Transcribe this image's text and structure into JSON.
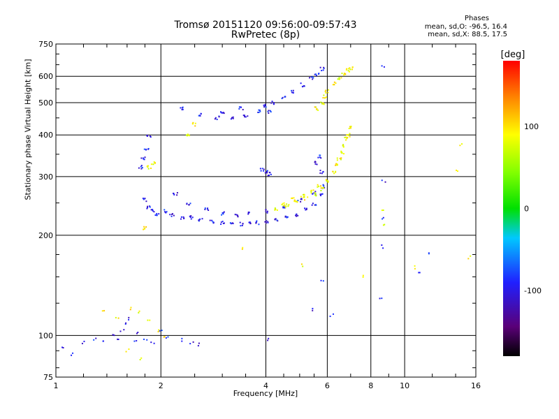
{
  "chart_data": {
    "type": "scatter",
    "title": "Tromsø 20151120 09:56:00-09:57:43",
    "subtitle": "RwPretec (8p)",
    "xlabel": "Frequency [MHz]",
    "ylabel": "Stationary phase Virtual Height [km]",
    "x_scale": "log",
    "y_scale": "log",
    "xlim": [
      1,
      16
    ],
    "ylim": [
      75,
      750
    ],
    "x_ticks": [
      1,
      2,
      4,
      6,
      8,
      10,
      16
    ],
    "y_ticks": [
      75,
      100,
      200,
      300,
      400,
      500,
      600,
      750
    ],
    "grid": true,
    "phases_label": {
      "title": "Phases",
      "o_line": "mean, sd,O: -96.5, 16.4",
      "x_line": "mean, sd,X:  88.5, 17.5"
    },
    "colorbar": {
      "label": "[deg]",
      "range": [
        -180,
        180
      ],
      "ticks": [
        100,
        0,
        -100
      ]
    },
    "series": [
      {
        "name": "O",
        "phase_mean": -96.5,
        "points": [
          [
            1.05,
            92
          ],
          [
            1.12,
            88
          ],
          [
            1.2,
            95
          ],
          [
            1.3,
            98
          ],
          [
            1.38,
            96
          ],
          [
            1.45,
            100
          ],
          [
            1.5,
            97
          ],
          [
            1.55,
            104
          ],
          [
            1.58,
            108
          ],
          [
            1.62,
            112
          ],
          [
            1.68,
            96
          ],
          [
            1.72,
            102
          ],
          [
            1.8,
            98
          ],
          [
            1.9,
            95
          ],
          [
            2.0,
            103
          ],
          [
            2.1,
            98
          ],
          [
            2.3,
            97
          ],
          [
            2.45,
            95
          ],
          [
            2.55,
            94
          ],
          [
            1.8,
            255
          ],
          [
            1.85,
            242
          ],
          [
            1.9,
            236
          ],
          [
            1.95,
            232
          ],
          [
            2.05,
            236
          ],
          [
            2.15,
            230
          ],
          [
            2.3,
            225
          ],
          [
            2.45,
            226
          ],
          [
            2.6,
            222
          ],
          [
            2.8,
            220
          ],
          [
            3.0,
            218
          ],
          [
            3.2,
            217
          ],
          [
            3.4,
            216
          ],
          [
            3.6,
            217
          ],
          [
            3.8,
            218
          ],
          [
            4.0,
            220
          ],
          [
            4.3,
            222
          ],
          [
            4.6,
            226
          ],
          [
            4.9,
            230
          ],
          [
            5.2,
            238
          ],
          [
            5.5,
            248
          ],
          [
            5.8,
            265
          ],
          [
            5.9,
            280
          ],
          [
            2.2,
            265
          ],
          [
            2.4,
            248
          ],
          [
            2.7,
            240
          ],
          [
            3.0,
            232
          ],
          [
            3.3,
            230
          ],
          [
            3.6,
            232
          ],
          [
            4.0,
            236
          ],
          [
            4.5,
            244
          ],
          [
            5.0,
            255
          ],
          [
            5.5,
            268
          ],
          [
            1.85,
            395
          ],
          [
            1.82,
            360
          ],
          [
            1.78,
            340
          ],
          [
            1.75,
            320
          ],
          [
            2.3,
            480
          ],
          [
            2.6,
            460
          ],
          [
            2.9,
            450
          ],
          [
            3.2,
            448
          ],
          [
            3.5,
            455
          ],
          [
            3.8,
            470
          ],
          [
            4.0,
            490
          ],
          [
            4.2,
            500
          ],
          [
            4.5,
            520
          ],
          [
            4.8,
            540
          ],
          [
            5.1,
            565
          ],
          [
            5.4,
            590
          ],
          [
            5.6,
            610
          ],
          [
            5.8,
            630
          ],
          [
            3.0,
            470
          ],
          [
            3.4,
            480
          ],
          [
            4.1,
            470
          ],
          [
            3.9,
            315
          ],
          [
            4.0,
            310
          ],
          [
            4.1,
            305
          ],
          [
            5.6,
            330
          ],
          [
            5.7,
            345
          ],
          [
            5.8,
            310
          ],
          [
            8.7,
            640
          ],
          [
            8.7,
            290
          ],
          [
            8.7,
            225
          ],
          [
            8.6,
            185
          ],
          [
            8.6,
            130
          ],
          [
            5.8,
            146
          ],
          [
            5.4,
            120
          ],
          [
            6.2,
            115
          ],
          [
            4.1,
            97
          ],
          [
            10.9,
            155
          ],
          [
            11.6,
            177
          ]
        ]
      },
      {
        "name": "X",
        "phase_mean": 88.5,
        "points": [
          [
            4.3,
            240
          ],
          [
            4.6,
            245
          ],
          [
            4.9,
            252
          ],
          [
            5.2,
            258
          ],
          [
            5.5,
            265
          ],
          [
            5.8,
            275
          ],
          [
            6.0,
            290
          ],
          [
            6.3,
            310
          ],
          [
            6.5,
            340
          ],
          [
            6.7,
            370
          ],
          [
            6.9,
            400
          ],
          [
            7.0,
            420
          ],
          [
            6.8,
            390
          ],
          [
            6.6,
            355
          ],
          [
            6.4,
            325
          ],
          [
            4.5,
            248
          ],
          [
            4.8,
            256
          ],
          [
            5.1,
            262
          ],
          [
            5.4,
            270
          ],
          [
            5.7,
            280
          ],
          [
            5.6,
            480
          ],
          [
            5.8,
            500
          ],
          [
            5.9,
            520
          ],
          [
            6.0,
            540
          ],
          [
            6.3,
            570
          ],
          [
            6.5,
            590
          ],
          [
            6.7,
            610
          ],
          [
            6.9,
            625
          ],
          [
            7.0,
            635
          ],
          [
            1.8,
            210
          ],
          [
            1.85,
            320
          ],
          [
            1.9,
            330
          ],
          [
            1.65,
            120
          ],
          [
            1.72,
            118
          ],
          [
            1.38,
            118
          ],
          [
            1.5,
            112
          ],
          [
            1.85,
            110
          ],
          [
            1.95,
            103
          ],
          [
            1.6,
            90
          ],
          [
            1.75,
            85
          ],
          [
            2.05,
            100
          ],
          [
            2.5,
            430
          ],
          [
            2.4,
            400
          ],
          [
            14.0,
            310
          ],
          [
            14.5,
            375
          ],
          [
            15.4,
            172
          ],
          [
            10.8,
            160
          ],
          [
            8.7,
            235
          ],
          [
            8.7,
            213
          ],
          [
            5.1,
            163
          ],
          [
            7.6,
            150
          ],
          [
            3.4,
            183
          ]
        ]
      }
    ]
  }
}
